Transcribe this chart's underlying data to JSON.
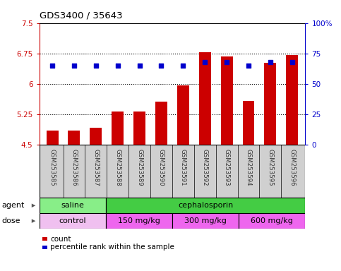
{
  "title": "GDS3400 / 35643",
  "samples": [
    "GSM253585",
    "GSM253586",
    "GSM253587",
    "GSM253588",
    "GSM253589",
    "GSM253590",
    "GSM253591",
    "GSM253592",
    "GSM253593",
    "GSM253594",
    "GSM253595",
    "GSM253596"
  ],
  "bar_values": [
    4.85,
    4.85,
    4.93,
    5.32,
    5.32,
    5.56,
    5.97,
    6.78,
    6.68,
    5.58,
    6.52,
    6.72
  ],
  "percentile_values": [
    65,
    65,
    65,
    65,
    65,
    65,
    65,
    68,
    68,
    65,
    68,
    68
  ],
  "bar_color": "#cc0000",
  "percentile_color": "#0000cc",
  "ylim_left": [
    4.5,
    7.5
  ],
  "ylim_right": [
    0,
    100
  ],
  "yticks_left": [
    4.5,
    5.25,
    6.0,
    6.75,
    7.5
  ],
  "yticks_right": [
    0,
    25,
    50,
    75,
    100
  ],
  "ytick_labels_left": [
    "4.5",
    "5.25",
    "6",
    "6.75",
    "7.5"
  ],
  "ytick_labels_right": [
    "0",
    "25",
    "50",
    "75",
    "100%"
  ],
  "hlines": [
    5.25,
    6.0,
    6.75
  ],
  "agent_groups": [
    {
      "label": "saline",
      "start": 0,
      "end": 3,
      "color": "#88ee88"
    },
    {
      "label": "cephalosporin",
      "start": 3,
      "end": 12,
      "color": "#44cc44"
    }
  ],
  "dose_groups": [
    {
      "label": "control",
      "start": 0,
      "end": 3,
      "color": "#f0c0f0"
    },
    {
      "label": "150 mg/kg",
      "start": 3,
      "end": 6,
      "color": "#ee66ee"
    },
    {
      "label": "300 mg/kg",
      "start": 6,
      "end": 9,
      "color": "#ee66ee"
    },
    {
      "label": "600 mg/kg",
      "start": 9,
      "end": 12,
      "color": "#ee66ee"
    }
  ],
  "xlabel_agent": "agent",
  "xlabel_dose": "dose",
  "legend_count": "count",
  "legend_percentile": "percentile rank within the sample",
  "bar_width": 0.55,
  "sample_bg_color": "#d0d0d0",
  "sample_bg_border": "#888888",
  "bg_color": "#ffffff"
}
